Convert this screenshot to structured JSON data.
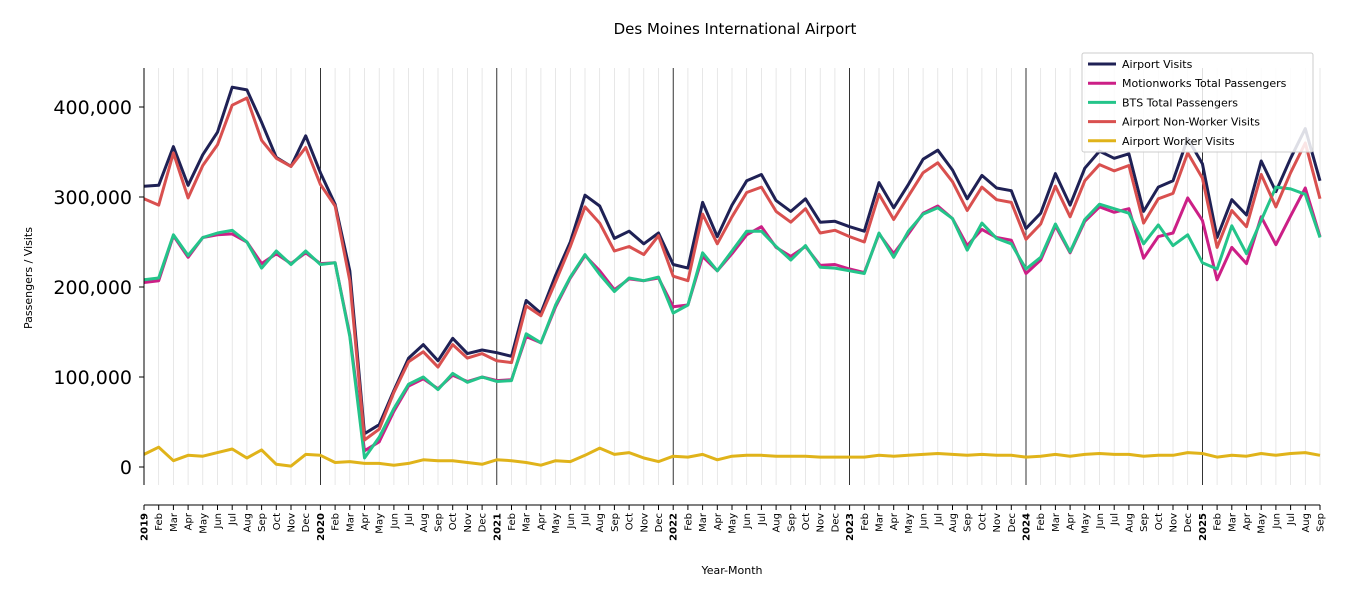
{
  "chart_data": {
    "type": "line",
    "title": "Des Moines International Airport",
    "xlabel": "Year-Month",
    "ylabel": "Passengers / Visits",
    "ylim": [
      -20000,
      445000
    ],
    "yticks": [
      0,
      100000,
      200000,
      300000,
      400000
    ],
    "ytick_labels": [
      "0",
      "100,000",
      "200,000",
      "300,000",
      "400,000"
    ],
    "legend_position": "top-right",
    "grid": "vertical monthly gridlines, darker lines at each year start",
    "x": [
      "2019-01",
      "2019-02",
      "2019-03",
      "2019-04",
      "2019-05",
      "2019-06",
      "2019-07",
      "2019-08",
      "2019-09",
      "2019-10",
      "2019-11",
      "2019-12",
      "2020-01",
      "2020-02",
      "2020-03",
      "2020-04",
      "2020-05",
      "2020-06",
      "2020-07",
      "2020-08",
      "2020-09",
      "2020-10",
      "2020-11",
      "2020-12",
      "2021-01",
      "2021-02",
      "2021-03",
      "2021-04",
      "2021-05",
      "2021-06",
      "2021-07",
      "2021-08",
      "2021-09",
      "2021-10",
      "2021-11",
      "2021-12",
      "2022-01",
      "2022-02",
      "2022-03",
      "2022-04",
      "2022-05",
      "2022-06",
      "2022-07",
      "2022-08",
      "2022-09",
      "2022-10",
      "2022-11",
      "2022-12",
      "2023-01",
      "2023-02",
      "2023-03",
      "2023-04",
      "2023-05",
      "2023-06",
      "2023-07",
      "2023-08",
      "2023-09",
      "2023-10",
      "2023-11",
      "2023-12",
      "2024-01",
      "2024-02",
      "2024-03",
      "2024-04",
      "2024-05",
      "2024-06",
      "2024-07",
      "2024-08",
      "2024-09",
      "2024-10",
      "2024-11",
      "2024-12",
      "2025-01",
      "2025-02",
      "2025-03",
      "2025-04",
      "2025-05",
      "2025-06",
      "2025-07",
      "2025-08",
      "2025-09"
    ],
    "x_tick_labels": [
      "2019",
      "Feb",
      "Mar",
      "Apr",
      "May",
      "Jun",
      "Jul",
      "Aug",
      "Sep",
      "Oct",
      "Nov",
      "Dec",
      "2020",
      "Feb",
      "Mar",
      "Apr",
      "May",
      "Jun",
      "Jul",
      "Aug",
      "Sep",
      "Oct",
      "Nov",
      "Dec",
      "2021",
      "Feb",
      "Mar",
      "Apr",
      "May",
      "Jun",
      "Jul",
      "Aug",
      "Sep",
      "Oct",
      "Nov",
      "Dec",
      "2022",
      "Feb",
      "Mar",
      "Apr",
      "May",
      "Jun",
      "Jul",
      "Aug",
      "Sep",
      "Oct",
      "Nov",
      "Dec",
      "2023",
      "Feb",
      "Mar",
      "Apr",
      "May",
      "Jun",
      "Jul",
      "Aug",
      "Sep",
      "Oct",
      "Nov",
      "Dec",
      "2024",
      "Feb",
      "Mar",
      "Apr",
      "May",
      "Jun",
      "Jul",
      "Aug",
      "Sep",
      "Oct",
      "Nov",
      "Dec",
      "2025",
      "Feb",
      "Mar",
      "Apr",
      "May",
      "Jun",
      "Jul",
      "Aug",
      "Sep"
    ],
    "series": [
      {
        "name": "Airport Visits",
        "color": "#1f2155",
        "values": [
          312000,
          313000,
          356000,
          313000,
          347000,
          372000,
          422000,
          419000,
          383000,
          344000,
          334000,
          368000,
          327000,
          292000,
          218000,
          37000,
          47000,
          85000,
          121000,
          136000,
          118000,
          143000,
          126000,
          130000,
          127000,
          123000,
          185000,
          171000,
          213000,
          250000,
          302000,
          290000,
          254000,
          262000,
          248000,
          260000,
          225000,
          221000,
          294000,
          256000,
          291000,
          318000,
          325000,
          296000,
          284000,
          298000,
          272000,
          273000,
          267000,
          262000,
          316000,
          288000,
          314000,
          342000,
          352000,
          330000,
          298000,
          324000,
          310000,
          307000,
          265000,
          282000,
          326000,
          291000,
          332000,
          351000,
          343000,
          348000,
          284000,
          311000,
          318000,
          365000,
          337000,
          255000,
          297000,
          280000,
          340000,
          306000,
          343000,
          376000,
          318000
        ]
      },
      {
        "name": "Motionworks Total Passengers",
        "color": "#cc1f86",
        "values": [
          205000,
          207000,
          257000,
          233000,
          255000,
          258000,
          259000,
          250000,
          226000,
          237000,
          226000,
          238000,
          226000,
          227000,
          147000,
          18000,
          28000,
          62000,
          90000,
          98000,
          87000,
          102000,
          95000,
          100000,
          96000,
          97000,
          145000,
          138000,
          178000,
          210000,
          235000,
          218000,
          197000,
          209000,
          207000,
          210000,
          178000,
          180000,
          234000,
          218000,
          237000,
          258000,
          267000,
          244000,
          234000,
          245000,
          224000,
          225000,
          220000,
          216000,
          259000,
          237000,
          259000,
          282000,
          290000,
          276000,
          246000,
          264000,
          255000,
          252000,
          215000,
          230000,
          268000,
          238000,
          273000,
          289000,
          283000,
          287000,
          232000,
          256000,
          260000,
          299000,
          274000,
          208000,
          244000,
          226000,
          278000,
          247000,
          279000,
          310000,
          256000
        ]
      },
      {
        "name": "BTS Total Passengers",
        "color": "#24c48a",
        "values": [
          208000,
          210000,
          258000,
          235000,
          255000,
          260000,
          263000,
          250000,
          221000,
          240000,
          225000,
          240000,
          225000,
          227000,
          145000,
          10000,
          33000,
          65000,
          92000,
          100000,
          86000,
          104000,
          94000,
          100000,
          95000,
          96000,
          148000,
          138000,
          180000,
          211000,
          236000,
          214000,
          195000,
          210000,
          207000,
          211000,
          171000,
          180000,
          238000,
          218000,
          240000,
          262000,
          262000,
          245000,
          230000,
          246000,
          222000,
          221000,
          218000,
          215000,
          260000,
          233000,
          262000,
          281000,
          288000,
          276000,
          241000,
          271000,
          254000,
          248000,
          220000,
          233000,
          270000,
          239000,
          275000,
          292000,
          287000,
          282000,
          248000,
          269000,
          246000,
          258000,
          227000,
          220000,
          268000,
          237000,
          274000,
          311000,
          309000,
          303000,
          255000
        ]
      },
      {
        "name": "Airport Non-Worker Visits",
        "color": "#d9504f",
        "values": [
          298000,
          291000,
          349000,
          299000,
          335000,
          358000,
          402000,
          410000,
          363000,
          343000,
          334000,
          355000,
          314000,
          290000,
          207000,
          30000,
          42000,
          83000,
          117000,
          128000,
          111000,
          136000,
          121000,
          126000,
          118000,
          116000,
          179000,
          168000,
          206000,
          245000,
          289000,
          271000,
          240000,
          245000,
          236000,
          257000,
          212000,
          207000,
          281000,
          248000,
          278000,
          305000,
          311000,
          284000,
          272000,
          287000,
          260000,
          263000,
          256000,
          250000,
          303000,
          275000,
          301000,
          327000,
          338000,
          317000,
          285000,
          311000,
          297000,
          294000,
          253000,
          270000,
          312000,
          278000,
          318000,
          336000,
          329000,
          335000,
          271000,
          298000,
          304000,
          349000,
          321000,
          244000,
          285000,
          267000,
          325000,
          289000,
          327000,
          360000,
          298000
        ]
      },
      {
        "name": "Airport Worker Visits",
        "color": "#e0b31a",
        "values": [
          14000,
          22000,
          7000,
          13000,
          12000,
          16000,
          20000,
          10000,
          19000,
          3000,
          1000,
          14000,
          13000,
          5000,
          6000,
          4000,
          4000,
          2000,
          4000,
          8000,
          7000,
          7000,
          5000,
          3000,
          8000,
          7000,
          5000,
          2000,
          7000,
          6000,
          13000,
          21000,
          14000,
          16000,
          10000,
          6000,
          12000,
          11000,
          14000,
          8000,
          12000,
          13000,
          13000,
          12000,
          12000,
          12000,
          11000,
          11000,
          11000,
          11000,
          13000,
          12000,
          13000,
          14000,
          15000,
          14000,
          13000,
          14000,
          13000,
          13000,
          11000,
          12000,
          14000,
          12000,
          14000,
          15000,
          14000,
          14000,
          12000,
          13000,
          13000,
          16000,
          15000,
          11000,
          13000,
          12000,
          15000,
          13000,
          15000,
          16000,
          13000
        ]
      }
    ]
  }
}
